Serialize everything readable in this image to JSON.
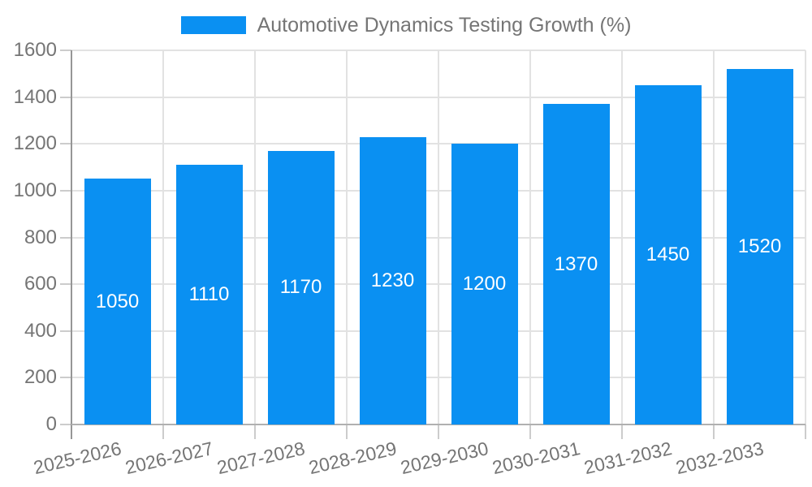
{
  "legend": {
    "label": "Automotive Dynamics Testing Growth (%)"
  },
  "chart_data": {
    "type": "bar",
    "title": "Automotive Dynamics Testing Growth (%)",
    "categories": [
      "2025-2026",
      "2026-2027",
      "2027-2028",
      "2028-2029",
      "2029-2030",
      "2030-2031",
      "2031-2032",
      "2032-2033"
    ],
    "values": [
      1050,
      1110,
      1170,
      1230,
      1200,
      1370,
      1450,
      1520
    ],
    "xlabel": "",
    "ylabel": "",
    "ylim": [
      0,
      1600
    ],
    "ytick_step": 200,
    "yticks": [
      0,
      200,
      400,
      600,
      800,
      1000,
      1200,
      1400,
      1600
    ],
    "grid": true,
    "legend_position": "top-center",
    "value_label_position": "inside-middle"
  },
  "style": {
    "bar_color": "#0a90f2",
    "value_label_color": "#ffffff",
    "axis_text_color": "#757575",
    "grid_color": "#e2e2e2",
    "tick_color": "#cccccc",
    "y_axis_color": "#969696",
    "x_axis_color": "#b0b0b0",
    "background": "#ffffff"
  }
}
